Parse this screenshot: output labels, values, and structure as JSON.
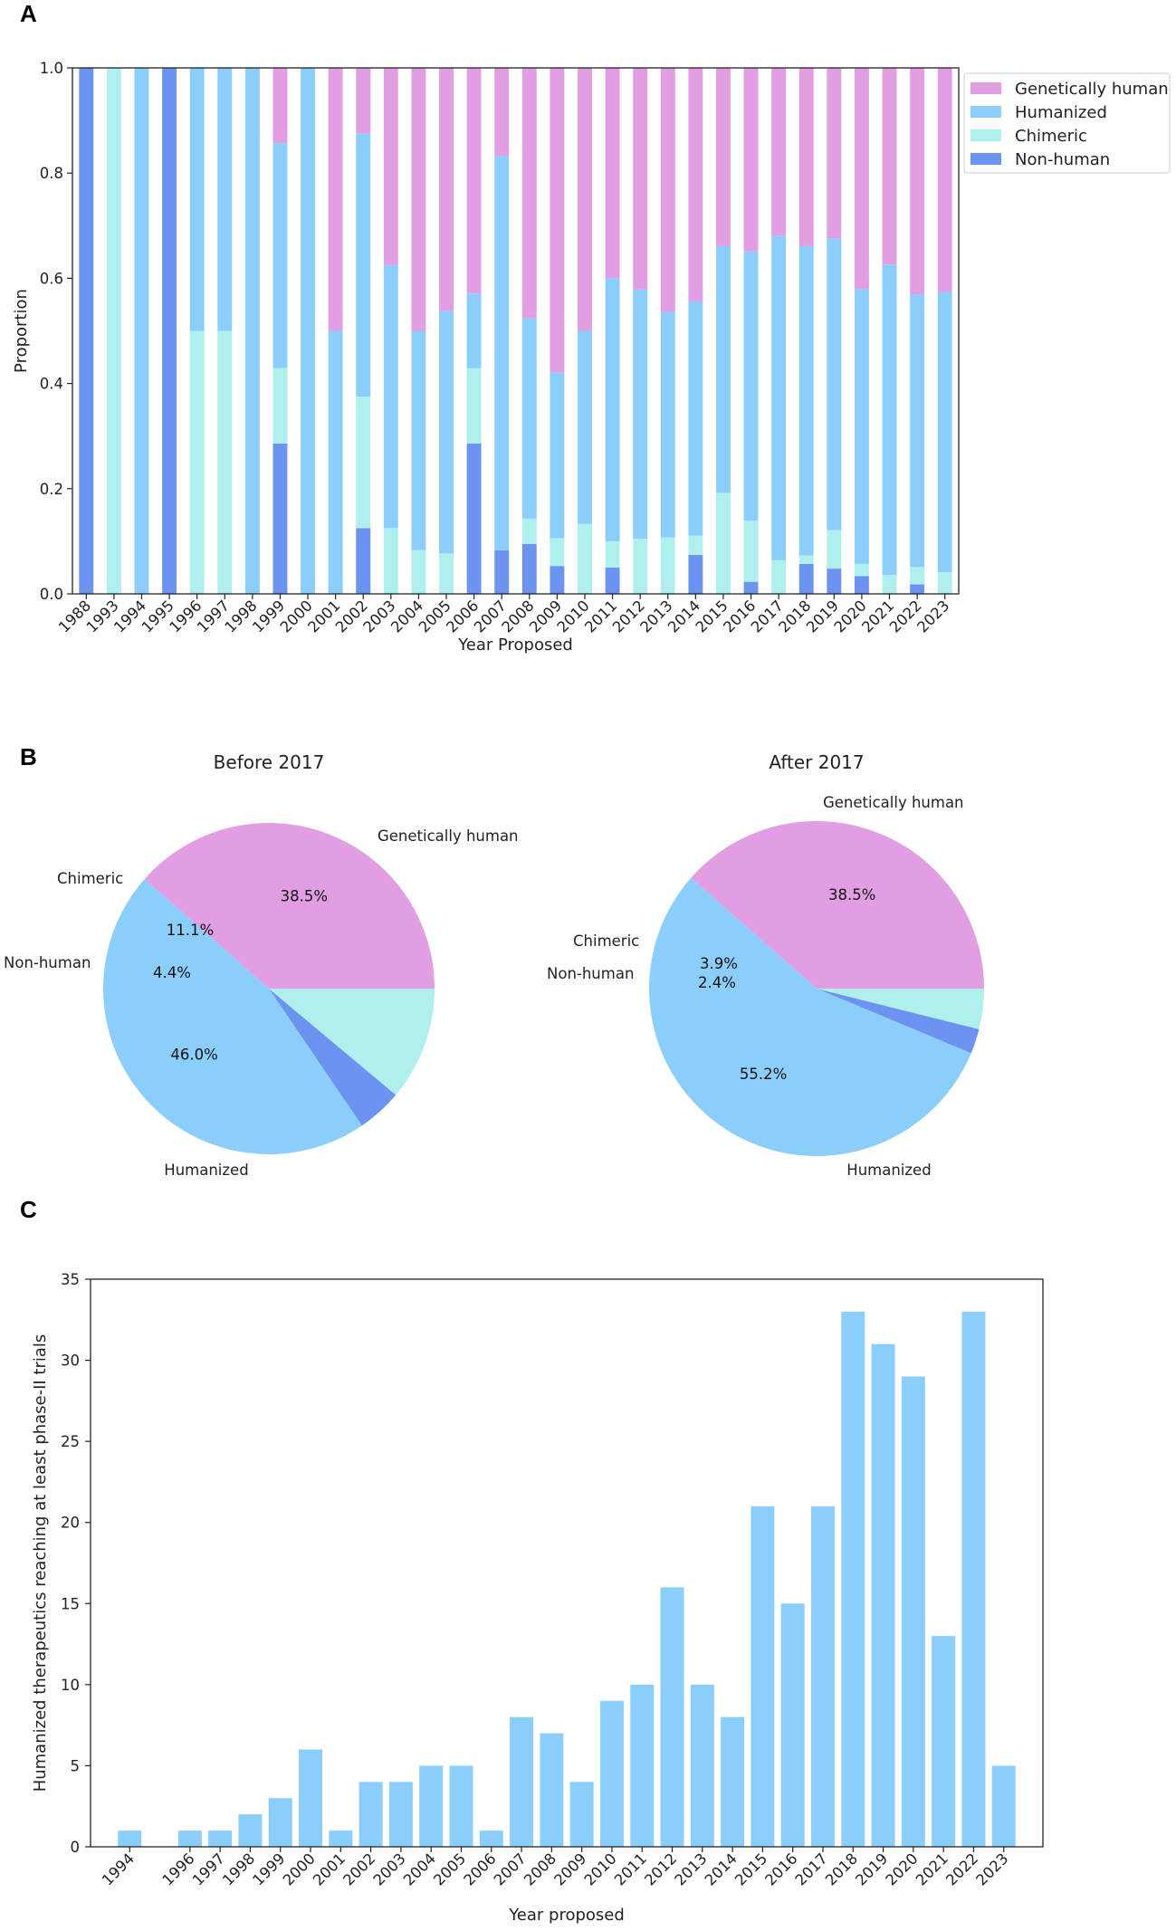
{
  "panels": {
    "a": "A",
    "b": "B",
    "c": "C"
  },
  "colors": {
    "genetically_human": "#e19ee3",
    "humanized": "#8ccefb",
    "chimeric": "#aff0ef",
    "non_human": "#6c93f0"
  },
  "chart_data": [
    {
      "type": "bar",
      "stacked": true,
      "title": "",
      "xlabel": "Year Proposed",
      "ylabel": "Proportion",
      "ylim": [
        0,
        1.0
      ],
      "yticks": [
        "0.0",
        "0.2",
        "0.4",
        "0.6",
        "0.8",
        "1.0"
      ],
      "categories": [
        "1988",
        "1993",
        "1994",
        "1995",
        "1996",
        "1997",
        "1998",
        "1999",
        "2000",
        "2001",
        "2002",
        "2003",
        "2004",
        "2005",
        "2006",
        "2007",
        "2008",
        "2009",
        "2010",
        "2011",
        "2012",
        "2013",
        "2014",
        "2015",
        "2016",
        "2017",
        "2018",
        "2019",
        "2020",
        "2021",
        "2022",
        "2023"
      ],
      "legend": {
        "position": "outside-right",
        "order": [
          "Genetically human",
          "Humanized",
          "Chimeric",
          "Non-human"
        ]
      },
      "series": [
        {
          "name": "Non-human",
          "key": "non_human",
          "values": [
            1.0,
            0,
            0,
            1.0,
            0,
            0,
            0,
            0.286,
            0,
            0,
            0.125,
            0,
            0,
            0,
            0.286,
            0.083,
            0.095,
            0.053,
            0,
            0.05,
            0,
            0,
            0.074,
            0,
            0.023,
            0,
            0.057,
            0.048,
            0.034,
            0,
            0.018,
            0
          ]
        },
        {
          "name": "Chimeric",
          "key": "chimeric",
          "values": [
            0,
            1.0,
            0,
            0,
            0.5,
            0.5,
            0,
            0.143,
            0,
            0,
            0.25,
            0.125,
            0.083,
            0.077,
            0.143,
            0,
            0.048,
            0.053,
            0.133,
            0.05,
            0.105,
            0.107,
            0.037,
            0.192,
            0.116,
            0.064,
            0.016,
            0.073,
            0.023,
            0.036,
            0.033,
            0.041
          ]
        },
        {
          "name": "Humanized",
          "key": "humanized",
          "values": [
            0,
            0,
            1.0,
            0,
            0.5,
            0.5,
            1.0,
            0.428,
            1.0,
            0.5,
            0.5,
            0.5,
            0.417,
            0.461,
            0.142,
            0.75,
            0.381,
            0.315,
            0.367,
            0.5,
            0.474,
            0.429,
            0.445,
            0.469,
            0.512,
            0.617,
            0.588,
            0.555,
            0.523,
            0.59,
            0.518,
            0.533
          ]
        },
        {
          "name": "Genetically human",
          "key": "genetically_human",
          "values": [
            0,
            0,
            0,
            0,
            0,
            0,
            0,
            0.143,
            0,
            0.5,
            0.125,
            0.375,
            0.5,
            0.462,
            0.429,
            0.167,
            0.476,
            0.579,
            0.5,
            0.4,
            0.421,
            0.464,
            0.444,
            0.339,
            0.349,
            0.319,
            0.339,
            0.324,
            0.42,
            0.374,
            0.431,
            0.426
          ]
        }
      ]
    },
    {
      "type": "pie",
      "title": "Before 2017",
      "slices": [
        {
          "label": "Genetically human",
          "key": "genetically_human",
          "value": 38.5,
          "pct_label": "38.5%"
        },
        {
          "label": "Humanized",
          "key": "humanized",
          "value": 46.0,
          "pct_label": "46.0%"
        },
        {
          "label": "Non-human",
          "key": "non_human",
          "value": 4.4,
          "pct_label": "4.4%"
        },
        {
          "label": "Chimeric",
          "key": "chimeric",
          "value": 11.1,
          "pct_label": "11.1%"
        }
      ]
    },
    {
      "type": "pie",
      "title": "After 2017",
      "slices": [
        {
          "label": "Genetically human",
          "key": "genetically_human",
          "value": 38.5,
          "pct_label": "38.5%"
        },
        {
          "label": "Humanized",
          "key": "humanized",
          "value": 55.2,
          "pct_label": "55.2%"
        },
        {
          "label": "Non-human",
          "key": "non_human",
          "value": 2.4,
          "pct_label": "2.4%"
        },
        {
          "label": "Chimeric",
          "key": "chimeric",
          "value": 3.9,
          "pct_label": "3.9%"
        }
      ]
    },
    {
      "type": "bar",
      "title": "",
      "xlabel": "Year proposed",
      "ylabel": "Humanized therapeutics reaching at least phase-II trials",
      "ylim": [
        0,
        35
      ],
      "yticks": [
        "0",
        "5",
        "10",
        "15",
        "20",
        "25",
        "30",
        "35"
      ],
      "categories": [
        "1994",
        "1996",
        "1997",
        "1998",
        "1999",
        "2000",
        "2001",
        "2002",
        "2003",
        "2004",
        "2005",
        "2006",
        "2007",
        "2008",
        "2009",
        "2010",
        "2011",
        "2012",
        "2013",
        "2014",
        "2015",
        "2016",
        "2017",
        "2018",
        "2019",
        "2020",
        "2021",
        "2022",
        "2023"
      ],
      "x_positions": [
        1994,
        1996,
        1997,
        1998,
        1999,
        2000,
        2001,
        2002,
        2003,
        2004,
        2005,
        2006,
        2007,
        2008,
        2009,
        2010,
        2011,
        2012,
        2013,
        2014,
        2015,
        2016,
        2017,
        2018,
        2019,
        2020,
        2021,
        2022,
        2023
      ],
      "xlim": [
        1992.7,
        2024.3
      ],
      "values": [
        1,
        1,
        1,
        2,
        3,
        6,
        1,
        4,
        4,
        5,
        5,
        1,
        8,
        7,
        4,
        9,
        10,
        16,
        10,
        8,
        21,
        15,
        21,
        33,
        31,
        29,
        13,
        33,
        5
      ]
    }
  ]
}
